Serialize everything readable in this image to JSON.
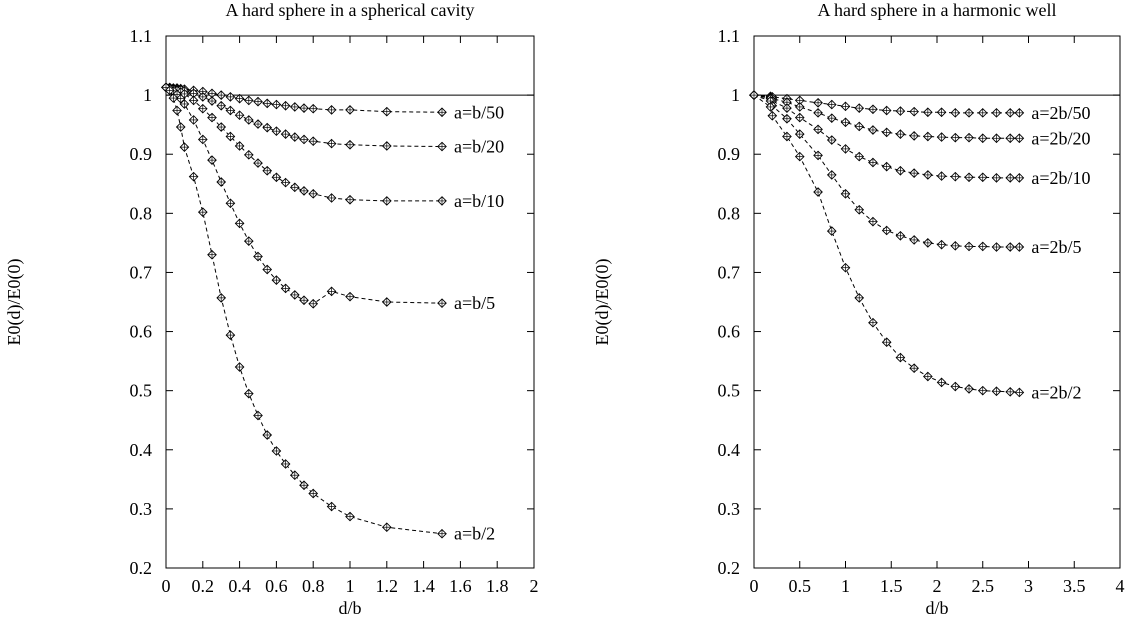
{
  "chart_data": [
    {
      "type": "line",
      "title": "A hard sphere in a spherical cavity",
      "xlabel": "d/b",
      "ylabel": "E0(d)/E0(0)",
      "xlim": [
        0,
        2
      ],
      "ylim": [
        0.2,
        1.1
      ],
      "xticks": [
        "0",
        "0.2",
        "0.4",
        "0.6",
        "0.8",
        "1",
        "1.2",
        "1.4",
        "1.6",
        "1.8",
        "2"
      ],
      "yticks": [
        "0.2",
        "0.3",
        "0.4",
        "0.5",
        "0.6",
        "0.7",
        "0.8",
        "0.9",
        "1",
        "1.1"
      ],
      "reference_line": 1,
      "grid": false,
      "series": [
        {
          "name": "a=b/50",
          "x": [
            0,
            0.02,
            0.04,
            0.06,
            0.08,
            0.1,
            0.15,
            0.2,
            0.25,
            0.3,
            0.35,
            0.4,
            0.45,
            0.5,
            0.55,
            0.6,
            0.65,
            0.7,
            0.75,
            0.8,
            0.9,
            1.0,
            1.2,
            1.5
          ],
          "y": [
            1.013,
            1.013,
            1.012,
            1.012,
            1.011,
            1.01,
            1.008,
            1.006,
            1.003,
            1.0,
            0.997,
            0.994,
            0.991,
            0.989,
            0.986,
            0.984,
            0.982,
            0.98,
            0.978,
            0.977,
            0.975,
            0.975,
            0.972,
            0.971
          ]
        },
        {
          "name": "a=b/20",
          "x": [
            0,
            0.02,
            0.04,
            0.06,
            0.08,
            0.1,
            0.15,
            0.2,
            0.25,
            0.3,
            0.35,
            0.4,
            0.45,
            0.5,
            0.55,
            0.6,
            0.65,
            0.7,
            0.75,
            0.8,
            0.9,
            1.0,
            1.2,
            1.5
          ],
          "y": [
            1.013,
            1.012,
            1.011,
            1.01,
            1.009,
            1.007,
            1.003,
            0.997,
            0.99,
            0.982,
            0.974,
            0.966,
            0.958,
            0.951,
            0.945,
            0.939,
            0.934,
            0.929,
            0.925,
            0.922,
            0.918,
            0.916,
            0.914,
            0.913
          ]
        },
        {
          "name": "a=b/10",
          "x": [
            0,
            0.02,
            0.04,
            0.06,
            0.08,
            0.1,
            0.15,
            0.2,
            0.25,
            0.3,
            0.35,
            0.4,
            0.45,
            0.5,
            0.55,
            0.6,
            0.65,
            0.7,
            0.75,
            0.8,
            0.9,
            1.0,
            1.2,
            1.5
          ],
          "y": [
            1.013,
            1.012,
            1.01,
            1.008,
            1.005,
            1.002,
            0.991,
            0.977,
            0.962,
            0.946,
            0.93,
            0.914,
            0.899,
            0.885,
            0.872,
            0.861,
            0.852,
            0.844,
            0.838,
            0.833,
            0.826,
            0.823,
            0.821,
            0.821
          ]
        },
        {
          "name": "a=b/5",
          "x": [
            0,
            0.02,
            0.04,
            0.06,
            0.08,
            0.1,
            0.15,
            0.2,
            0.25,
            0.3,
            0.35,
            0.4,
            0.45,
            0.5,
            0.55,
            0.6,
            0.65,
            0.7,
            0.75,
            0.8,
            0.9,
            1.0,
            1.2,
            1.5
          ],
          "y": [
            1.013,
            1.011,
            1.007,
            1.001,
            0.994,
            0.985,
            0.958,
            0.925,
            0.89,
            0.853,
            0.817,
            0.783,
            0.753,
            0.727,
            0.705,
            0.687,
            0.673,
            0.662,
            0.653,
            0.647,
            0.668,
            0.659,
            0.65,
            0.648
          ]
        },
        {
          "name": "a=b/2",
          "x": [
            0,
            0.02,
            0.04,
            0.06,
            0.08,
            0.1,
            0.15,
            0.2,
            0.25,
            0.3,
            0.35,
            0.4,
            0.45,
            0.5,
            0.55,
            0.6,
            0.65,
            0.7,
            0.75,
            0.8,
            0.9,
            1.0,
            1.2,
            1.5
          ],
          "y": [
            1.013,
            1.008,
            0.995,
            0.974,
            0.946,
            0.912,
            0.862,
            0.802,
            0.73,
            0.657,
            0.594,
            0.54,
            0.495,
            0.458,
            0.425,
            0.398,
            0.376,
            0.357,
            0.34,
            0.326,
            0.304,
            0.287,
            0.269,
            0.258
          ]
        }
      ]
    },
    {
      "type": "line",
      "title": "A hard sphere in a harmonic well",
      "xlabel": "d/b",
      "ylabel": "E0(d)/E0(0)",
      "xlim": [
        0,
        4
      ],
      "ylim": [
        0.2,
        1.1
      ],
      "xticks": [
        "0",
        "0.5",
        "1",
        "1.5",
        "2",
        "2.5",
        "3",
        "3.5",
        "4"
      ],
      "yticks": [
        "0.2",
        "0.3",
        "0.4",
        "0.5",
        "0.6",
        "0.7",
        "0.8",
        "0.9",
        "1",
        "1.1"
      ],
      "reference_line": 1,
      "grid": false,
      "series": [
        {
          "name": "a=2b/50",
          "x": [
            0,
            0.18,
            0.2,
            0.36,
            0.5,
            0.7,
            0.85,
            1.0,
            1.15,
            1.3,
            1.45,
            1.6,
            1.75,
            1.9,
            2.05,
            2.2,
            2.35,
            2.5,
            2.65,
            2.8,
            2.9
          ],
          "y": [
            1.0,
            0.998,
            0.997,
            0.994,
            0.991,
            0.987,
            0.984,
            0.981,
            0.978,
            0.976,
            0.974,
            0.973,
            0.972,
            0.971,
            0.971,
            0.97,
            0.97,
            0.97,
            0.97,
            0.97,
            0.97
          ]
        },
        {
          "name": "a=2b/20",
          "x": [
            0,
            0.18,
            0.2,
            0.36,
            0.5,
            0.7,
            0.85,
            1.0,
            1.15,
            1.3,
            1.45,
            1.6,
            1.75,
            1.9,
            2.05,
            2.2,
            2.35,
            2.5,
            2.65,
            2.8,
            2.9
          ],
          "y": [
            1.0,
            0.996,
            0.994,
            0.988,
            0.98,
            0.97,
            0.961,
            0.954,
            0.947,
            0.941,
            0.937,
            0.934,
            0.931,
            0.93,
            0.929,
            0.928,
            0.928,
            0.927,
            0.927,
            0.927,
            0.927
          ]
        },
        {
          "name": "a=2b/10",
          "x": [
            0,
            0.18,
            0.2,
            0.36,
            0.5,
            0.7,
            0.85,
            1.0,
            1.15,
            1.3,
            1.45,
            1.6,
            1.75,
            1.9,
            2.05,
            2.2,
            2.35,
            2.5,
            2.65,
            2.8,
            2.9
          ],
          "y": [
            1.0,
            0.994,
            0.99,
            0.978,
            0.962,
            0.942,
            0.924,
            0.909,
            0.896,
            0.886,
            0.879,
            0.872,
            0.868,
            0.865,
            0.863,
            0.862,
            0.861,
            0.861,
            0.86,
            0.86,
            0.86
          ]
        },
        {
          "name": "a=2b/5",
          "x": [
            0,
            0.18,
            0.2,
            0.36,
            0.5,
            0.7,
            0.85,
            1.0,
            1.15,
            1.3,
            1.45,
            1.6,
            1.75,
            1.9,
            2.05,
            2.2,
            2.35,
            2.5,
            2.65,
            2.8,
            2.9
          ],
          "y": [
            1.0,
            0.99,
            0.982,
            0.96,
            0.934,
            0.898,
            0.865,
            0.833,
            0.806,
            0.786,
            0.771,
            0.762,
            0.755,
            0.75,
            0.747,
            0.745,
            0.744,
            0.744,
            0.743,
            0.743,
            0.743
          ]
        },
        {
          "name": "a=2b/2",
          "x": [
            0,
            0.18,
            0.2,
            0.36,
            0.5,
            0.7,
            0.85,
            1.0,
            1.15,
            1.3,
            1.45,
            1.6,
            1.75,
            1.9,
            2.05,
            2.2,
            2.35,
            2.5,
            2.65,
            2.8,
            2.9
          ],
          "y": [
            1.0,
            0.98,
            0.965,
            0.93,
            0.896,
            0.836,
            0.77,
            0.708,
            0.657,
            0.615,
            0.582,
            0.556,
            0.538,
            0.524,
            0.514,
            0.507,
            0.503,
            0.5,
            0.499,
            0.498,
            0.497
          ]
        }
      ]
    }
  ]
}
